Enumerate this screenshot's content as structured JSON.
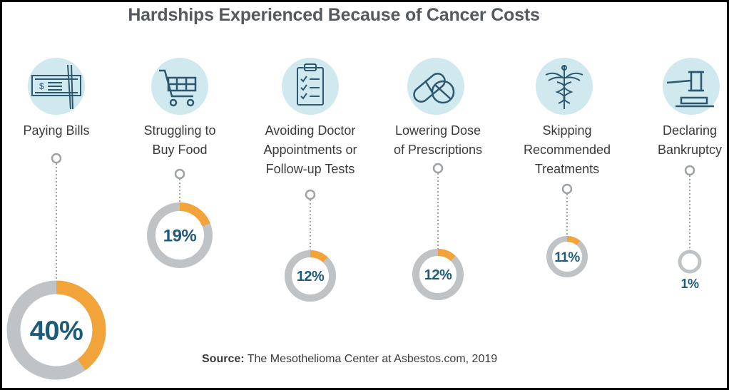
{
  "title": "Hardships Experienced Because of Cancer Costs",
  "source": {
    "label": "Source:",
    "text": "The Mesothelioma Center at Asbestos.com, 2019"
  },
  "colors": {
    "accent": "#f2a43a",
    "ring_base": "#bfc3c6",
    "icon_bg": "#cfe9ef",
    "icon_line": "#2d5870",
    "percent_text": "#1e5b7a",
    "connector": "#9ea3a6"
  },
  "chart_data": {
    "type": "donut",
    "title": "Hardships Experienced Because of Cancer Costs",
    "categories": [
      "Paying Bills",
      "Struggling to Buy Food",
      "Avoiding Doctor Appointments or Follow-up Tests",
      "Lowering Dose of Prescriptions",
      "Skipping Recommended Treatments",
      "Declaring Bankruptcy"
    ],
    "values": [
      40,
      19,
      12,
      12,
      11,
      1
    ],
    "unit": "%",
    "items": [
      {
        "label_lines": [
          "Paying Bills"
        ],
        "value": 40,
        "display": "40%",
        "icon": "check-icon"
      },
      {
        "label_lines": [
          "Struggling to",
          "Buy Food"
        ],
        "value": 19,
        "display": "19%",
        "icon": "shopping-cart-icon"
      },
      {
        "label_lines": [
          "Avoiding Doctor",
          "Appointments or",
          "Follow-up Tests"
        ],
        "value": 12,
        "display": "12%",
        "icon": "clipboard-checklist-icon"
      },
      {
        "label_lines": [
          "Lowering Dose",
          "of Prescriptions"
        ],
        "value": 12,
        "display": "12%",
        "icon": "pills-icon"
      },
      {
        "label_lines": [
          "Skipping",
          "Recommended",
          "Treatments"
        ],
        "value": 11,
        "display": "11%",
        "icon": "caduceus-icon"
      },
      {
        "label_lines": [
          "Declaring",
          "Bankruptcy"
        ],
        "value": 1,
        "display": "1%",
        "icon": "gavel-icon"
      }
    ]
  }
}
